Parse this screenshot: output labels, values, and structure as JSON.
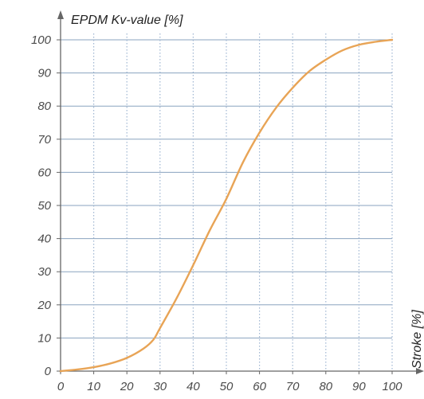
{
  "chart_data": {
    "type": "line",
    "title": "",
    "ylabel": "EPDM Kv-value [%]",
    "xlabel": "Stroke [%]",
    "xlim": [
      0,
      100
    ],
    "ylim": [
      0,
      100
    ],
    "x_ticks": [
      "0",
      "10",
      "20",
      "30",
      "40",
      "50",
      "60",
      "70",
      "80",
      "90",
      "100"
    ],
    "y_ticks": [
      "0",
      "10",
      "20",
      "30",
      "40",
      "50",
      "60",
      "70",
      "80",
      "90",
      "100"
    ],
    "grid": true,
    "series": [
      {
        "color": "#e8a456",
        "x": [
          0,
          5,
          10,
          15,
          20,
          25,
          28,
          30,
          35,
          40,
          45,
          50,
          55,
          60,
          65,
          70,
          75,
          80,
          85,
          90,
          95,
          100
        ],
        "y": [
          0,
          0.5,
          1.2,
          2.3,
          4,
          6.8,
          9.5,
          13,
          22,
          32,
          42.5,
          52,
          63,
          72,
          79.5,
          85.5,
          90.5,
          94,
          96.8,
          98.5,
          99.4,
          100
        ]
      }
    ],
    "colors": {
      "grid_horizontal": "#8aa3bf",
      "grid_vertical": "#9fb6d2",
      "axis": "#666666"
    }
  }
}
